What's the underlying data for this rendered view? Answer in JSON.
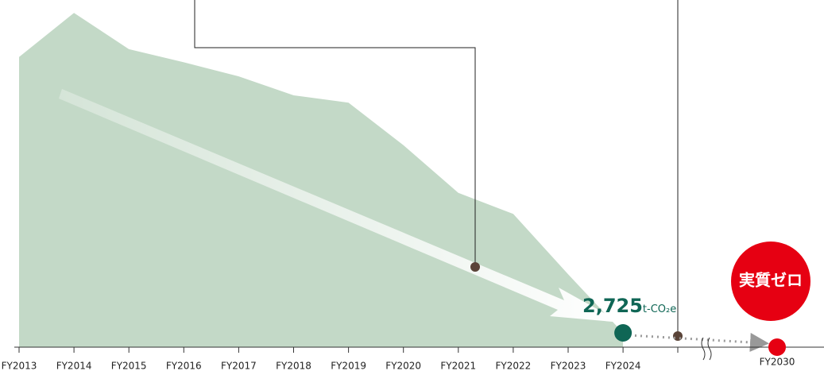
{
  "chart_data": {
    "type": "area",
    "categories": [
      "FY2013",
      "FY2014",
      "FY2015",
      "FY2016",
      "FY2017",
      "FY2018",
      "FY2019",
      "FY2020",
      "FY2021",
      "FY2022",
      "FY2023",
      "FY2024"
    ],
    "values": [
      55300,
      63700,
      56800,
      54300,
      51600,
      48000,
      46600,
      38500,
      29400,
      25400,
      13900,
      2725
    ],
    "value_labels": [
      null,
      null,
      null,
      null,
      null,
      null,
      null,
      null,
      null,
      null,
      null,
      "2,725"
    ],
    "unit": "t-CO₂e",
    "color": "#c3d9c7",
    "ylim": [
      0,
      65000
    ],
    "target": {
      "category": "FY2030",
      "value": 0,
      "label": "実質ゼロ",
      "color": "#e60012"
    }
  }
}
